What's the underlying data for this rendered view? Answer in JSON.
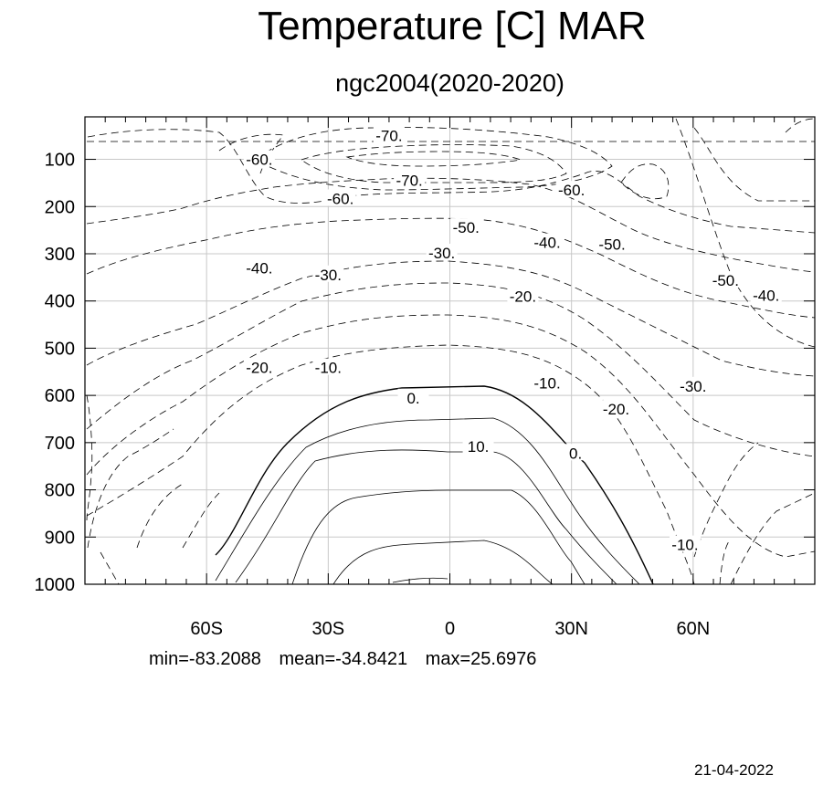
{
  "chart_data": {
    "type": "contour",
    "title": "Temperature [C] MAR",
    "subtitle": "ngc2004(2020-2020)",
    "x_tick_labels": [
      "60S",
      "30S",
      "0",
      "30N",
      "60N"
    ],
    "x_tick_values": [
      -60,
      -30,
      0,
      30,
      60
    ],
    "xlim": [
      -90,
      90
    ],
    "y_tick_labels": [
      "100",
      "200",
      "300",
      "400",
      "500",
      "600",
      "700",
      "800",
      "900",
      "1000"
    ],
    "y_tick_values": [
      100,
      200,
      300,
      400,
      500,
      600,
      700,
      800,
      900,
      1000
    ],
    "ylim": [
      10,
      1000
    ],
    "y_inverted": true,
    "grid": true,
    "contour_labels": [
      {
        "text": "-70.",
        "x": -15,
        "y": 52
      },
      {
        "text": "-70.",
        "x": -10,
        "y": 146
      },
      {
        "text": "-60.",
        "x": -47,
        "y": 102
      },
      {
        "text": "-60.",
        "x": -27,
        "y": 185
      },
      {
        "text": "-60.",
        "x": 30,
        "y": 167
      },
      {
        "text": "-50.",
        "x": 4,
        "y": 246
      },
      {
        "text": "-50.",
        "x": 40,
        "y": 282
      },
      {
        "text": "-50.",
        "x": 68,
        "y": 358
      },
      {
        "text": "-40.",
        "x": 24,
        "y": 278
      },
      {
        "text": "-40.",
        "x": -47,
        "y": 332
      },
      {
        "text": "-40.",
        "x": 78,
        "y": 390
      },
      {
        "text": "-30.",
        "x": -30,
        "y": 346
      },
      {
        "text": "-30.",
        "x": -2,
        "y": 300
      },
      {
        "text": "-30.",
        "x": 60,
        "y": 582
      },
      {
        "text": "-20.",
        "x": 18,
        "y": 392
      },
      {
        "text": "-20.",
        "x": -47,
        "y": 543
      },
      {
        "text": "-20.",
        "x": 41,
        "y": 631
      },
      {
        "text": "-10.",
        "x": -30,
        "y": 543
      },
      {
        "text": "-10.",
        "x": 24,
        "y": 576
      },
      {
        "text": "-10.",
        "x": 58,
        "y": 918
      },
      {
        "text": "0.",
        "x": -9,
        "y": 607
      },
      {
        "text": "0.",
        "x": 31,
        "y": 724
      },
      {
        "text": "10.",
        "x": 7,
        "y": 710
      }
    ],
    "stats": {
      "min": "min=-83.2088",
      "mean": "mean=-34.8421",
      "max": "max=25.6976"
    }
  },
  "footer": {
    "date": "21-04-2022"
  }
}
